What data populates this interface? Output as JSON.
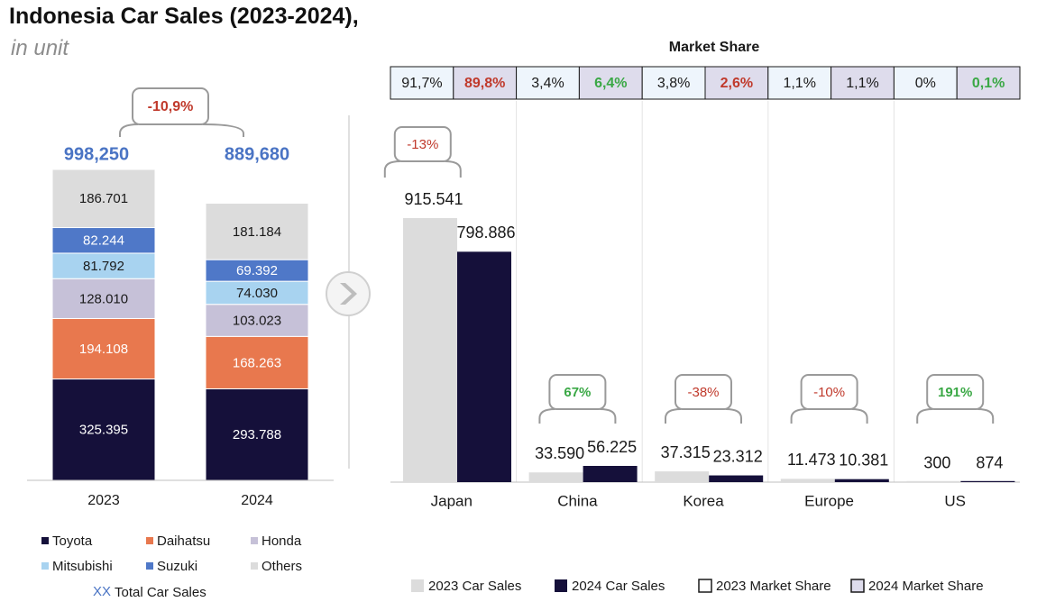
{
  "header": {
    "title": "Indonesia Car Sales (2023-2024),",
    "subtitle": "in unit"
  },
  "chart_data": [
    {
      "type": "bar",
      "stacked": true,
      "categories": [
        "2023",
        "2024"
      ],
      "series": [
        {
          "name": "Toyota",
          "values": [
            325395,
            293788
          ],
          "labels": [
            "325.395",
            "293.788"
          ],
          "color": "#15103a"
        },
        {
          "name": "Daihatsu",
          "values": [
            194108,
            168263
          ],
          "labels": [
            "194.108",
            "168.263"
          ],
          "color": "#e8784e"
        },
        {
          "name": "Honda",
          "values": [
            128010,
            103023
          ],
          "labels": [
            "128.010",
            "103.023"
          ],
          "color": "#c6c1d8"
        },
        {
          "name": "Mitsubishi",
          "values": [
            81792,
            74030
          ],
          "labels": [
            "81.792",
            "74.030"
          ],
          "color": "#a8d3f0"
        },
        {
          "name": "Suzuki",
          "values": [
            82244,
            69392
          ],
          "labels": [
            "82.244",
            "69.392"
          ],
          "color": "#4f78c8"
        },
        {
          "name": "Others",
          "values": [
            186701,
            181184
          ],
          "labels": [
            "186.701",
            "181.184"
          ],
          "color": "#dcdcdc"
        }
      ],
      "totals": [
        "998,250",
        "889,680"
      ],
      "total_values": [
        998250,
        889680
      ],
      "change_label": "-10,9%",
      "legend": {
        "items": [
          "Toyota",
          "Daihatsu",
          "Honda",
          "Mitsubishi",
          "Suzuki",
          "Others"
        ],
        "total_marker": "XX",
        "total_label": "Total Car Sales"
      }
    },
    {
      "type": "bar",
      "categories": [
        "Japan",
        "China",
        "Korea",
        "Europe",
        "US"
      ],
      "series": [
        {
          "name": "2023 Car Sales",
          "values": [
            915541,
            33590,
            37315,
            11473,
            300
          ],
          "labels": [
            "915.541",
            "33.590",
            "37.315",
            "11.473",
            "300"
          ],
          "color": "#dcdcdc"
        },
        {
          "name": "2024 Car Sales",
          "values": [
            798886,
            56225,
            23312,
            10381,
            874
          ],
          "labels": [
            "798.886",
            "56.225",
            "23.312",
            "10.381",
            "874"
          ],
          "color": "#15103a"
        }
      ],
      "changes": [
        {
          "label": "-13%",
          "color": "#c0392b"
        },
        {
          "label": "67%",
          "color": "#3aa845"
        },
        {
          "label": "-38%",
          "color": "#c0392b"
        },
        {
          "label": "-10%",
          "color": "#c0392b"
        },
        {
          "label": "191%",
          "color": "#3aa845"
        }
      ],
      "market_share": {
        "title": "Market Share",
        "cells": [
          {
            "label": "91,7%",
            "year": "2023",
            "color": "#1a1a1a"
          },
          {
            "label": "89,8%",
            "year": "2024",
            "color": "#c0392b"
          },
          {
            "label": "3,4%",
            "year": "2023",
            "color": "#1a1a1a"
          },
          {
            "label": "6,4%",
            "year": "2024",
            "color": "#3aa845"
          },
          {
            "label": "3,8%",
            "year": "2023",
            "color": "#1a1a1a"
          },
          {
            "label": "2,6%",
            "year": "2024",
            "color": "#c0392b"
          },
          {
            "label": "1,1%",
            "year": "2023",
            "color": "#1a1a1a"
          },
          {
            "label": "1,1%",
            "year": "2024",
            "color": "#1a1a1a"
          },
          {
            "label": "0%",
            "year": "2023",
            "color": "#1a1a1a"
          },
          {
            "label": "0,1%",
            "year": "2024",
            "color": "#3aa845"
          }
        ]
      },
      "legend": {
        "items": [
          "2023 Car Sales",
          "2024 Car Sales",
          "2023 Market Share",
          "2024 Market Share"
        ]
      }
    }
  ],
  "colors": {
    "total_blue": "#4a74c4",
    "negative_red": "#c0392b",
    "positive_green": "#3aa845",
    "share_2023_bg": "#eef5fc",
    "share_2024_bg": "#dedcec",
    "callout_border": "#9a9a9a"
  },
  "icons": {
    "arrow": "chevron-right-circle-icon"
  }
}
